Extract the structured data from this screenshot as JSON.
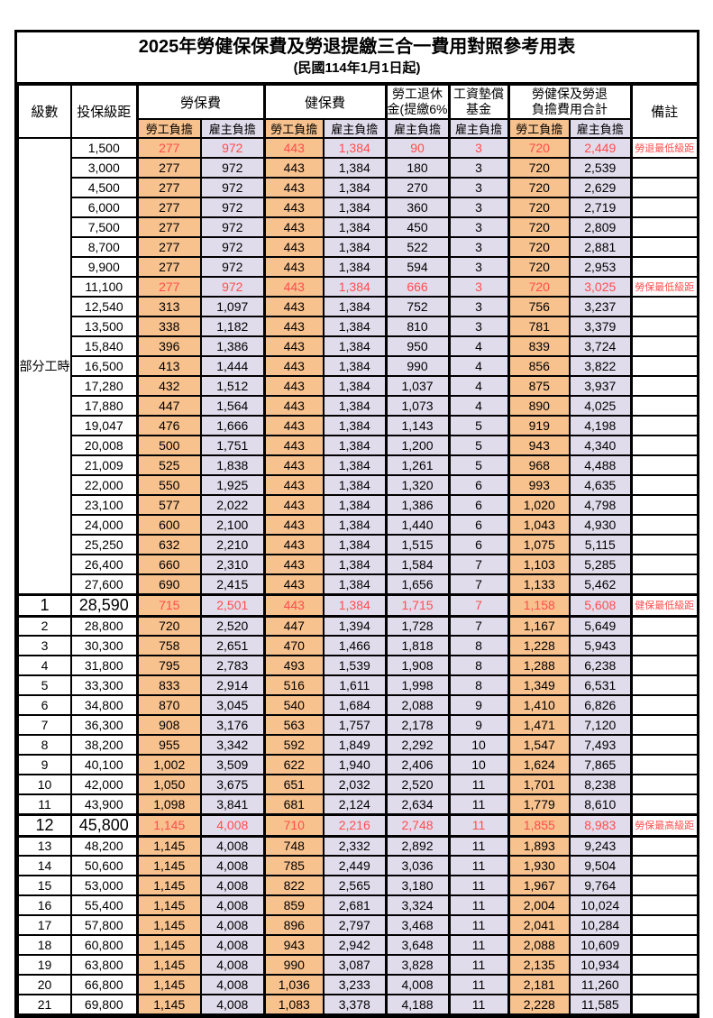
{
  "title": "2025年勞健保保費及勞退提繳三合一費用對照參考用表",
  "subtitle": "(民國114年1月1日起)",
  "header": {
    "level_label": "級數",
    "bracket_label": "投保級距",
    "labor_insurance_label": "勞保費",
    "health_insurance_label": "健保費",
    "pension_line1": "勞工退休",
    "pension_line2": "金(提繳6%)",
    "wage_fund_line1": "工資墊償",
    "wage_fund_line2": "基金",
    "total_line1": "勞健保及勞退",
    "total_line2": "負擔費用合計",
    "remark_label": "備註",
    "employee_label": "勞工負擔",
    "employer_label": "雇主負擔"
  },
  "part_time_label": "部分工時",
  "colors": {
    "employee_column_bg": "#f8c28e",
    "employer_column_bg": "#e1dcec",
    "highlight_text": "#ff4d4d"
  },
  "rows": [
    {
      "level": null,
      "bracket": "1,500",
      "values": [
        "277",
        "972",
        "443",
        "1,384",
        "90",
        "3",
        "720",
        "2,449"
      ],
      "remark": "勞退最低級距",
      "highlight": true,
      "big": false
    },
    {
      "level": null,
      "bracket": "3,000",
      "values": [
        "277",
        "972",
        "443",
        "1,384",
        "180",
        "3",
        "720",
        "2,539"
      ],
      "remark": "",
      "highlight": false,
      "big": false
    },
    {
      "level": null,
      "bracket": "4,500",
      "values": [
        "277",
        "972",
        "443",
        "1,384",
        "270",
        "3",
        "720",
        "2,629"
      ],
      "remark": "",
      "highlight": false,
      "big": false
    },
    {
      "level": null,
      "bracket": "6,000",
      "values": [
        "277",
        "972",
        "443",
        "1,384",
        "360",
        "3",
        "720",
        "2,719"
      ],
      "remark": "",
      "highlight": false,
      "big": false
    },
    {
      "level": null,
      "bracket": "7,500",
      "values": [
        "277",
        "972",
        "443",
        "1,384",
        "450",
        "3",
        "720",
        "2,809"
      ],
      "remark": "",
      "highlight": false,
      "big": false
    },
    {
      "level": null,
      "bracket": "8,700",
      "values": [
        "277",
        "972",
        "443",
        "1,384",
        "522",
        "3",
        "720",
        "2,881"
      ],
      "remark": "",
      "highlight": false,
      "big": false
    },
    {
      "level": null,
      "bracket": "9,900",
      "values": [
        "277",
        "972",
        "443",
        "1,384",
        "594",
        "3",
        "720",
        "2,953"
      ],
      "remark": "",
      "highlight": false,
      "big": false
    },
    {
      "level": null,
      "bracket": "11,100",
      "values": [
        "277",
        "972",
        "443",
        "1,384",
        "666",
        "3",
        "720",
        "3,025"
      ],
      "remark": "勞保最低級距",
      "highlight": true,
      "big": false
    },
    {
      "level": null,
      "bracket": "12,540",
      "values": [
        "313",
        "1,097",
        "443",
        "1,384",
        "752",
        "3",
        "756",
        "3,237"
      ],
      "remark": "",
      "highlight": false,
      "big": false
    },
    {
      "level": null,
      "bracket": "13,500",
      "values": [
        "338",
        "1,182",
        "443",
        "1,384",
        "810",
        "3",
        "781",
        "3,379"
      ],
      "remark": "",
      "highlight": false,
      "big": false
    },
    {
      "level": null,
      "bracket": "15,840",
      "values": [
        "396",
        "1,386",
        "443",
        "1,384",
        "950",
        "4",
        "839",
        "3,724"
      ],
      "remark": "",
      "highlight": false,
      "big": false
    },
    {
      "level": null,
      "bracket": "16,500",
      "values": [
        "413",
        "1,444",
        "443",
        "1,384",
        "990",
        "4",
        "856",
        "3,822"
      ],
      "remark": "",
      "highlight": false,
      "big": false
    },
    {
      "level": null,
      "bracket": "17,280",
      "values": [
        "432",
        "1,512",
        "443",
        "1,384",
        "1,037",
        "4",
        "875",
        "3,937"
      ],
      "remark": "",
      "highlight": false,
      "big": false
    },
    {
      "level": null,
      "bracket": "17,880",
      "values": [
        "447",
        "1,564",
        "443",
        "1,384",
        "1,073",
        "4",
        "890",
        "4,025"
      ],
      "remark": "",
      "highlight": false,
      "big": false
    },
    {
      "level": null,
      "bracket": "19,047",
      "values": [
        "476",
        "1,666",
        "443",
        "1,384",
        "1,143",
        "5",
        "919",
        "4,198"
      ],
      "remark": "",
      "highlight": false,
      "big": false
    },
    {
      "level": null,
      "bracket": "20,008",
      "values": [
        "500",
        "1,751",
        "443",
        "1,384",
        "1,200",
        "5",
        "943",
        "4,340"
      ],
      "remark": "",
      "highlight": false,
      "big": false
    },
    {
      "level": null,
      "bracket": "21,009",
      "values": [
        "525",
        "1,838",
        "443",
        "1,384",
        "1,261",
        "5",
        "968",
        "4,488"
      ],
      "remark": "",
      "highlight": false,
      "big": false
    },
    {
      "level": null,
      "bracket": "22,000",
      "values": [
        "550",
        "1,925",
        "443",
        "1,384",
        "1,320",
        "6",
        "993",
        "4,635"
      ],
      "remark": "",
      "highlight": false,
      "big": false
    },
    {
      "level": null,
      "bracket": "23,100",
      "values": [
        "577",
        "2,022",
        "443",
        "1,384",
        "1,386",
        "6",
        "1,020",
        "4,798"
      ],
      "remark": "",
      "highlight": false,
      "big": false
    },
    {
      "level": null,
      "bracket": "24,000",
      "values": [
        "600",
        "2,100",
        "443",
        "1,384",
        "1,440",
        "6",
        "1,043",
        "4,930"
      ],
      "remark": "",
      "highlight": false,
      "big": false
    },
    {
      "level": null,
      "bracket": "25,250",
      "values": [
        "632",
        "2,210",
        "443",
        "1,384",
        "1,515",
        "6",
        "1,075",
        "5,115"
      ],
      "remark": "",
      "highlight": false,
      "big": false
    },
    {
      "level": null,
      "bracket": "26,400",
      "values": [
        "660",
        "2,310",
        "443",
        "1,384",
        "1,584",
        "7",
        "1,103",
        "5,285"
      ],
      "remark": "",
      "highlight": false,
      "big": false
    },
    {
      "level": null,
      "bracket": "27,600",
      "values": [
        "690",
        "2,415",
        "443",
        "1,384",
        "1,656",
        "7",
        "1,133",
        "5,462"
      ],
      "remark": "",
      "highlight": false,
      "big": false
    },
    {
      "level": "1",
      "bracket": "28,590",
      "values": [
        "715",
        "2,501",
        "443",
        "1,384",
        "1,715",
        "7",
        "1,158",
        "5,608"
      ],
      "remark": "健保最低級距",
      "highlight": true,
      "big": true
    },
    {
      "level": "2",
      "bracket": "28,800",
      "values": [
        "720",
        "2,520",
        "447",
        "1,394",
        "1,728",
        "7",
        "1,167",
        "5,649"
      ],
      "remark": "",
      "highlight": false,
      "big": false
    },
    {
      "level": "3",
      "bracket": "30,300",
      "values": [
        "758",
        "2,651",
        "470",
        "1,466",
        "1,818",
        "8",
        "1,228",
        "5,943"
      ],
      "remark": "",
      "highlight": false,
      "big": false
    },
    {
      "level": "4",
      "bracket": "31,800",
      "values": [
        "795",
        "2,783",
        "493",
        "1,539",
        "1,908",
        "8",
        "1,288",
        "6,238"
      ],
      "remark": "",
      "highlight": false,
      "big": false
    },
    {
      "level": "5",
      "bracket": "33,300",
      "values": [
        "833",
        "2,914",
        "516",
        "1,611",
        "1,998",
        "8",
        "1,349",
        "6,531"
      ],
      "remark": "",
      "highlight": false,
      "big": false
    },
    {
      "level": "6",
      "bracket": "34,800",
      "values": [
        "870",
        "3,045",
        "540",
        "1,684",
        "2,088",
        "9",
        "1,410",
        "6,826"
      ],
      "remark": "",
      "highlight": false,
      "big": false
    },
    {
      "level": "7",
      "bracket": "36,300",
      "values": [
        "908",
        "3,176",
        "563",
        "1,757",
        "2,178",
        "9",
        "1,471",
        "7,120"
      ],
      "remark": "",
      "highlight": false,
      "big": false
    },
    {
      "level": "8",
      "bracket": "38,200",
      "values": [
        "955",
        "3,342",
        "592",
        "1,849",
        "2,292",
        "10",
        "1,547",
        "7,493"
      ],
      "remark": "",
      "highlight": false,
      "big": false
    },
    {
      "level": "9",
      "bracket": "40,100",
      "values": [
        "1,002",
        "3,509",
        "622",
        "1,940",
        "2,406",
        "10",
        "1,624",
        "7,865"
      ],
      "remark": "",
      "highlight": false,
      "big": false
    },
    {
      "level": "10",
      "bracket": "42,000",
      "values": [
        "1,050",
        "3,675",
        "651",
        "2,032",
        "2,520",
        "11",
        "1,701",
        "8,238"
      ],
      "remark": "",
      "highlight": false,
      "big": false
    },
    {
      "level": "11",
      "bracket": "43,900",
      "values": [
        "1,098",
        "3,841",
        "681",
        "2,124",
        "2,634",
        "11",
        "1,779",
        "8,610"
      ],
      "remark": "",
      "highlight": false,
      "big": false
    },
    {
      "level": "12",
      "bracket": "45,800",
      "values": [
        "1,145",
        "4,008",
        "710",
        "2,216",
        "2,748",
        "11",
        "1,855",
        "8,983"
      ],
      "remark": "勞保最高級距",
      "highlight": true,
      "big": true
    },
    {
      "level": "13",
      "bracket": "48,200",
      "values": [
        "1,145",
        "4,008",
        "748",
        "2,332",
        "2,892",
        "11",
        "1,893",
        "9,243"
      ],
      "remark": "",
      "highlight": false,
      "big": false
    },
    {
      "level": "14",
      "bracket": "50,600",
      "values": [
        "1,145",
        "4,008",
        "785",
        "2,449",
        "3,036",
        "11",
        "1,930",
        "9,504"
      ],
      "remark": "",
      "highlight": false,
      "big": false
    },
    {
      "level": "15",
      "bracket": "53,000",
      "values": [
        "1,145",
        "4,008",
        "822",
        "2,565",
        "3,180",
        "11",
        "1,967",
        "9,764"
      ],
      "remark": "",
      "highlight": false,
      "big": false
    },
    {
      "level": "16",
      "bracket": "55,400",
      "values": [
        "1,145",
        "4,008",
        "859",
        "2,681",
        "3,324",
        "11",
        "2,004",
        "10,024"
      ],
      "remark": "",
      "highlight": false,
      "big": false
    },
    {
      "level": "17",
      "bracket": "57,800",
      "values": [
        "1,145",
        "4,008",
        "896",
        "2,797",
        "3,468",
        "11",
        "2,041",
        "10,284"
      ],
      "remark": "",
      "highlight": false,
      "big": false
    },
    {
      "level": "18",
      "bracket": "60,800",
      "values": [
        "1,145",
        "4,008",
        "943",
        "2,942",
        "3,648",
        "11",
        "2,088",
        "10,609"
      ],
      "remark": "",
      "highlight": false,
      "big": false
    },
    {
      "level": "19",
      "bracket": "63,800",
      "values": [
        "1,145",
        "4,008",
        "990",
        "3,087",
        "3,828",
        "11",
        "2,135",
        "10,934"
      ],
      "remark": "",
      "highlight": false,
      "big": false
    },
    {
      "level": "20",
      "bracket": "66,800",
      "values": [
        "1,145",
        "4,008",
        "1,036",
        "3,233",
        "4,008",
        "11",
        "2,181",
        "11,260"
      ],
      "remark": "",
      "highlight": false,
      "big": false
    },
    {
      "level": "21",
      "bracket": "69,800",
      "values": [
        "1,145",
        "4,008",
        "1,083",
        "3,378",
        "4,188",
        "11",
        "2,228",
        "11,585"
      ],
      "remark": "",
      "highlight": false,
      "big": false
    }
  ]
}
